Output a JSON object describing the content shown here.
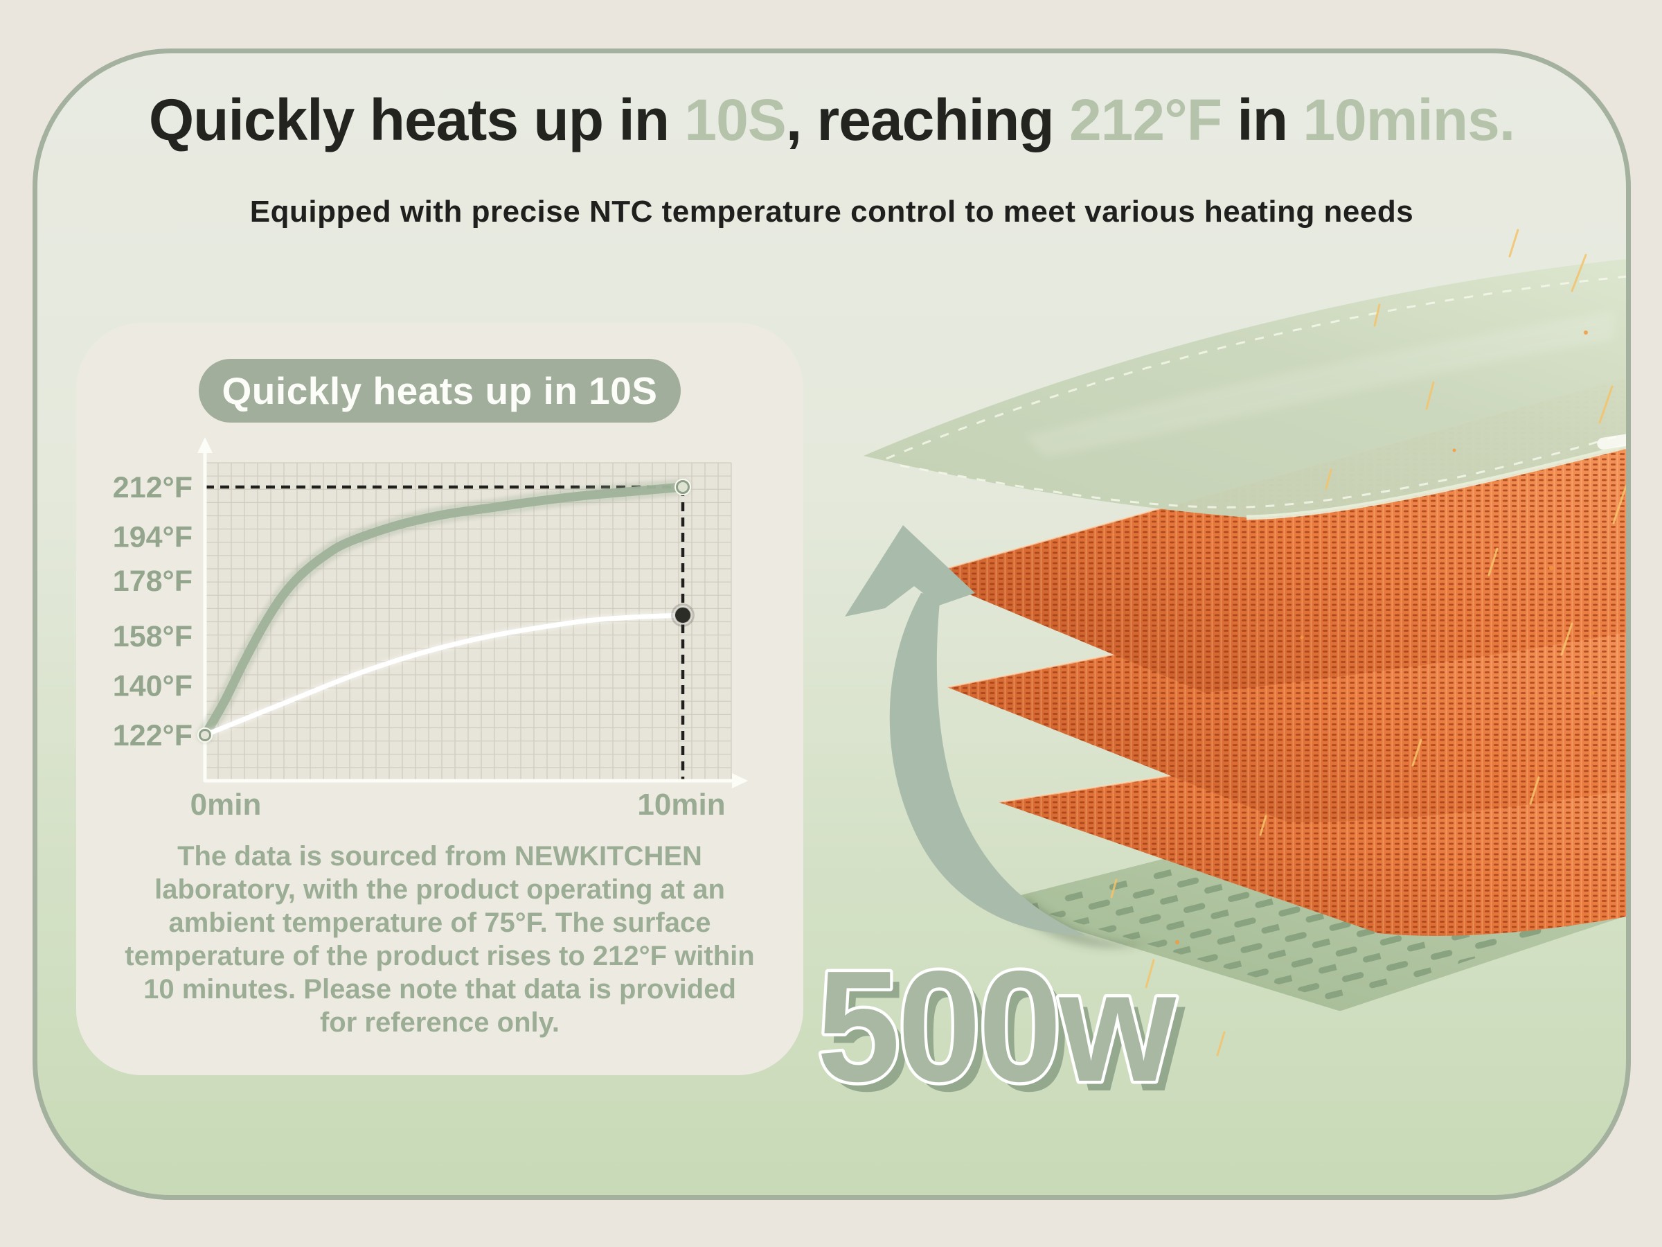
{
  "header": {
    "title_segments": [
      {
        "text": "Quickly heats up in ",
        "accent": false
      },
      {
        "text": "10S",
        "accent": true
      },
      {
        "text": ", reaching ",
        "accent": false
      },
      {
        "text": "212°F",
        "accent": true
      },
      {
        "text": " in ",
        "accent": false
      },
      {
        "text": "10mins.",
        "accent": true
      }
    ],
    "subtitle": "Equipped with precise NTC temperature control to meet various heating needs"
  },
  "chart_card": {
    "badge": "Quickly heats up in 10S",
    "footnote_lines": [
      "The data is sourced from NEWKITCHEN",
      "laboratory, with the product operating at an",
      "ambient temperature of 75°F. The surface",
      "temperature of the product rises to 212°F within",
      "10 minutes. Please note that data is provided",
      "for reference only."
    ]
  },
  "chart_data": {
    "type": "line",
    "title": "Quickly heats up in 10S",
    "x_range": [
      0,
      10
    ],
    "y_range": [
      122,
      212
    ],
    "x_ticks": [
      {
        "label": "0min",
        "value": 0
      },
      {
        "label": "10min",
        "value": 10
      }
    ],
    "y_ticks": [
      {
        "label": "212°F",
        "value": 212
      },
      {
        "label": "194°F",
        "value": 194
      },
      {
        "label": "178°F",
        "value": 178
      },
      {
        "label": "158°F",
        "value": 158
      },
      {
        "label": "140°F",
        "value": 140
      },
      {
        "label": "122°F",
        "value": 122
      }
    ],
    "grid": true,
    "grid_color": "#cac6b8",
    "plot_bg": "#e7e4d9",
    "annotations": {
      "h_dash_at": 212,
      "v_dash_at": 10,
      "dash_color": "#1f1f1c"
    },
    "series": [
      {
        "name": "upper-curve",
        "color": "#9fb29a",
        "stroke_width": 13,
        "end_dot": "ring",
        "points": [
          [
            0,
            122
          ],
          [
            0.4,
            134
          ],
          [
            0.8,
            148
          ],
          [
            1.2,
            161
          ],
          [
            1.6,
            172
          ],
          [
            2,
            180
          ],
          [
            2.5,
            187
          ],
          [
            3,
            192
          ],
          [
            4,
            198
          ],
          [
            5,
            202
          ],
          [
            6,
            204.5
          ],
          [
            7,
            207
          ],
          [
            8,
            209
          ],
          [
            9,
            210.5
          ],
          [
            10,
            212
          ]
        ]
      },
      {
        "name": "lower-curve",
        "color": "#ffffff",
        "stroke_width": 7,
        "end_dot": "dark",
        "points": [
          [
            0,
            122
          ],
          [
            1,
            129
          ],
          [
            2,
            136
          ],
          [
            3,
            143
          ],
          [
            4,
            149
          ],
          [
            5,
            154
          ],
          [
            6,
            158
          ],
          [
            7,
            161
          ],
          [
            8,
            163.5
          ],
          [
            9,
            164.8
          ],
          [
            10,
            165.5
          ]
        ]
      }
    ]
  },
  "right_panel": {
    "wattage": "500w"
  },
  "colors": {
    "page_bg": "#eae6de",
    "panel_border": "#a3b19e",
    "panel_gradient_top": "#e9ebe2",
    "panel_gradient_bottom": "#c8dab7",
    "card_bg": "#edebe1",
    "badge_bg": "#a1ae9b",
    "badge_text": "#fcfdf8",
    "title_dark": "#23231f",
    "title_accent": "#b6c3ab",
    "sage_text": "#97a88f",
    "axis_white": "#fdfdf8",
    "arrow_green": "#a9bcab",
    "mesh_orange": "#e97a3e",
    "mesh_dark_stitch": "#9c3a14",
    "perforated_plate_green": "#b7c9a8",
    "glass_plate_green": "#ccd8bd",
    "wattage_fill": "#a9b8a2",
    "wattage_shadow": "#8ba086",
    "spark_gold": "#f5c36a"
  }
}
